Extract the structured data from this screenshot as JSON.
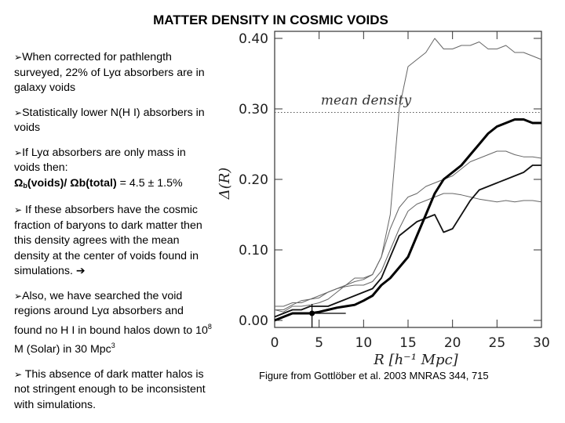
{
  "title": "MATTER DENSITY IN COSMIC VOIDS",
  "bullets": {
    "b1": "When corrected for pathlength surveyed, 22% of Lyα absorbers are in galaxy voids",
    "b2": "Statistically lower N(H I) absorbers in voids",
    "b3_text": "If Lyα absorbers are only mass in voids then:",
    "b3_formula_1": "Ω",
    "b3_formula_sub": "b",
    "b3_formula_2": "(voids)/ Ωb(total)",
    "b3_value": " = 4.5 ± 1.5%",
    "b4": " If these absorbers have the cosmic fraction of baryons to dark matter then this density agrees with the mean density at the center of voids found in simulations. ",
    "b5_1": "Also, we have searched the void regions around Lyα absorbers and found no H I in bound halos down to 10",
    "b5_sup1": "8",
    "b5_2": " M (Solar) in 30 Mpc",
    "b5_sup2": "3",
    "b6": " This absence of dark matter halos is not stringent enough to be inconsistent with simulations."
  },
  "caption": "Figure from Gottlöber et al. 2003 MNRAS 344, 715",
  "chart_data": {
    "type": "line",
    "xlabel": "R [h⁻¹ Mpc]",
    "ylabel": "Δ(R)",
    "xlim": [
      0,
      30
    ],
    "ylim": [
      -0.01,
      0.41
    ],
    "xticks": [
      0,
      5,
      10,
      15,
      20,
      25,
      30
    ],
    "yticks": [
      0.0,
      0.1,
      0.2,
      0.3,
      0.4
    ],
    "ytick_labels": [
      "0.00",
      "0.10",
      "0.20",
      "0.30",
      "0.40"
    ],
    "annotation": "mean density",
    "mean_density": 0.295,
    "series": [
      {
        "name": "thin-1",
        "style": "thin",
        "x": [
          0,
          1,
          2,
          3,
          4,
          5,
          6,
          7,
          8,
          9,
          10,
          11,
          12,
          13,
          14,
          15,
          16,
          17,
          18,
          19,
          20,
          21,
          22,
          23,
          24,
          25,
          26,
          27,
          28,
          29,
          30
        ],
        "y": [
          0.015,
          0.012,
          0.02,
          0.02,
          0.022,
          0.025,
          0.03,
          0.04,
          0.05,
          0.06,
          0.06,
          0.065,
          0.09,
          0.15,
          0.3,
          0.36,
          0.37,
          0.38,
          0.4,
          0.385,
          0.385,
          0.39,
          0.39,
          0.395,
          0.385,
          0.385,
          0.39,
          0.38,
          0.38,
          0.375,
          0.37
        ]
      },
      {
        "name": "thin-2",
        "style": "thin",
        "x": [
          0,
          1,
          2,
          3,
          4,
          5,
          6,
          7,
          8,
          9,
          10,
          11,
          12,
          13,
          14,
          15,
          16,
          17,
          18,
          19,
          20,
          21,
          22,
          23,
          24,
          25,
          26,
          27,
          28,
          29,
          30
        ],
        "y": [
          0.015,
          0.015,
          0.022,
          0.028,
          0.03,
          0.032,
          0.04,
          0.045,
          0.05,
          0.055,
          0.058,
          0.065,
          0.09,
          0.13,
          0.16,
          0.175,
          0.18,
          0.19,
          0.195,
          0.2,
          0.205,
          0.215,
          0.225,
          0.23,
          0.235,
          0.24,
          0.24,
          0.235,
          0.232,
          0.232,
          0.23
        ]
      },
      {
        "name": "thin-3",
        "style": "thin",
        "x": [
          0,
          1,
          2,
          3,
          4,
          5,
          6,
          7,
          8,
          9,
          10,
          11,
          12,
          13,
          14,
          15,
          16,
          17,
          18,
          19,
          20,
          21,
          22,
          23,
          24,
          25,
          26,
          27,
          28,
          29,
          30
        ],
        "y": [
          0.02,
          0.02,
          0.025,
          0.025,
          0.03,
          0.035,
          0.04,
          0.045,
          0.048,
          0.05,
          0.05,
          0.055,
          0.07,
          0.1,
          0.13,
          0.155,
          0.165,
          0.17,
          0.175,
          0.18,
          0.18,
          0.178,
          0.175,
          0.172,
          0.17,
          0.168,
          0.17,
          0.168,
          0.17,
          0.17,
          0.168
        ]
      },
      {
        "name": "medium",
        "style": "medium",
        "x": [
          0,
          1,
          2,
          3,
          4,
          5,
          6,
          7,
          8,
          9,
          10,
          11,
          12,
          13,
          14,
          15,
          16,
          17,
          18,
          19,
          20,
          21,
          22,
          23,
          24,
          25,
          26,
          27,
          28,
          29,
          30
        ],
        "y": [
          0.005,
          0.01,
          0.015,
          0.015,
          0.02,
          0.02,
          0.02,
          0.025,
          0.03,
          0.035,
          0.04,
          0.045,
          0.06,
          0.09,
          0.12,
          0.13,
          0.14,
          0.145,
          0.15,
          0.125,
          0.13,
          0.15,
          0.17,
          0.185,
          0.19,
          0.195,
          0.2,
          0.205,
          0.21,
          0.22,
          0.22
        ]
      },
      {
        "name": "thick",
        "style": "thick",
        "x": [
          0,
          1,
          2,
          3,
          4,
          5,
          6,
          7,
          8,
          9,
          10,
          11,
          12,
          13,
          14,
          15,
          16,
          17,
          18,
          19,
          20,
          21,
          22,
          23,
          24,
          25,
          26,
          27,
          28,
          29,
          30
        ],
        "y": [
          0.0,
          0.005,
          0.01,
          0.01,
          0.01,
          0.012,
          0.015,
          0.018,
          0.02,
          0.022,
          0.028,
          0.035,
          0.05,
          0.06,
          0.075,
          0.09,
          0.12,
          0.15,
          0.18,
          0.2,
          0.21,
          0.22,
          0.235,
          0.25,
          0.265,
          0.275,
          0.28,
          0.285,
          0.285,
          0.28,
          0.28
        ]
      }
    ],
    "marker": {
      "x": 4.2,
      "y": 0.01,
      "bar_x": [
        4.2,
        8.0
      ]
    }
  }
}
